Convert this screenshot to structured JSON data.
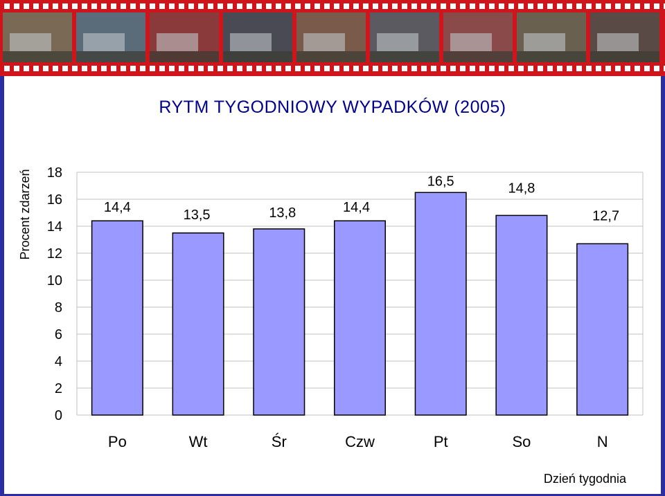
{
  "colors": {
    "bar_fill": "#9999ff",
    "bar_stroke": "#000000",
    "title": "#00008b",
    "grid": "#c0c0c0",
    "filmstrip": "#d0141c",
    "background": "#2a2ea0"
  },
  "banner": {
    "description_icon": "filmstrip-photos-icon"
  },
  "chart_data": {
    "type": "bar",
    "title": "RYTM TYGODNIOWY WYPADKÓW (2005)",
    "xlabel": "Dzień tygodnia",
    "ylabel": "Procent zdarzeń",
    "categories": [
      "Po",
      "Wt",
      "Śr",
      "Czw",
      "Pt",
      "So",
      "N"
    ],
    "values": [
      14.4,
      13.5,
      13.8,
      14.4,
      16.5,
      14.8,
      12.7
    ],
    "value_labels": [
      "14,4",
      "13,5",
      "13,8",
      "14,4",
      "16,5",
      "14,8",
      "12,7"
    ],
    "ylim": [
      0,
      18
    ],
    "yticks": [
      0,
      2,
      4,
      6,
      8,
      10,
      12,
      14,
      16,
      18
    ],
    "grid": true,
    "legend": "none"
  }
}
